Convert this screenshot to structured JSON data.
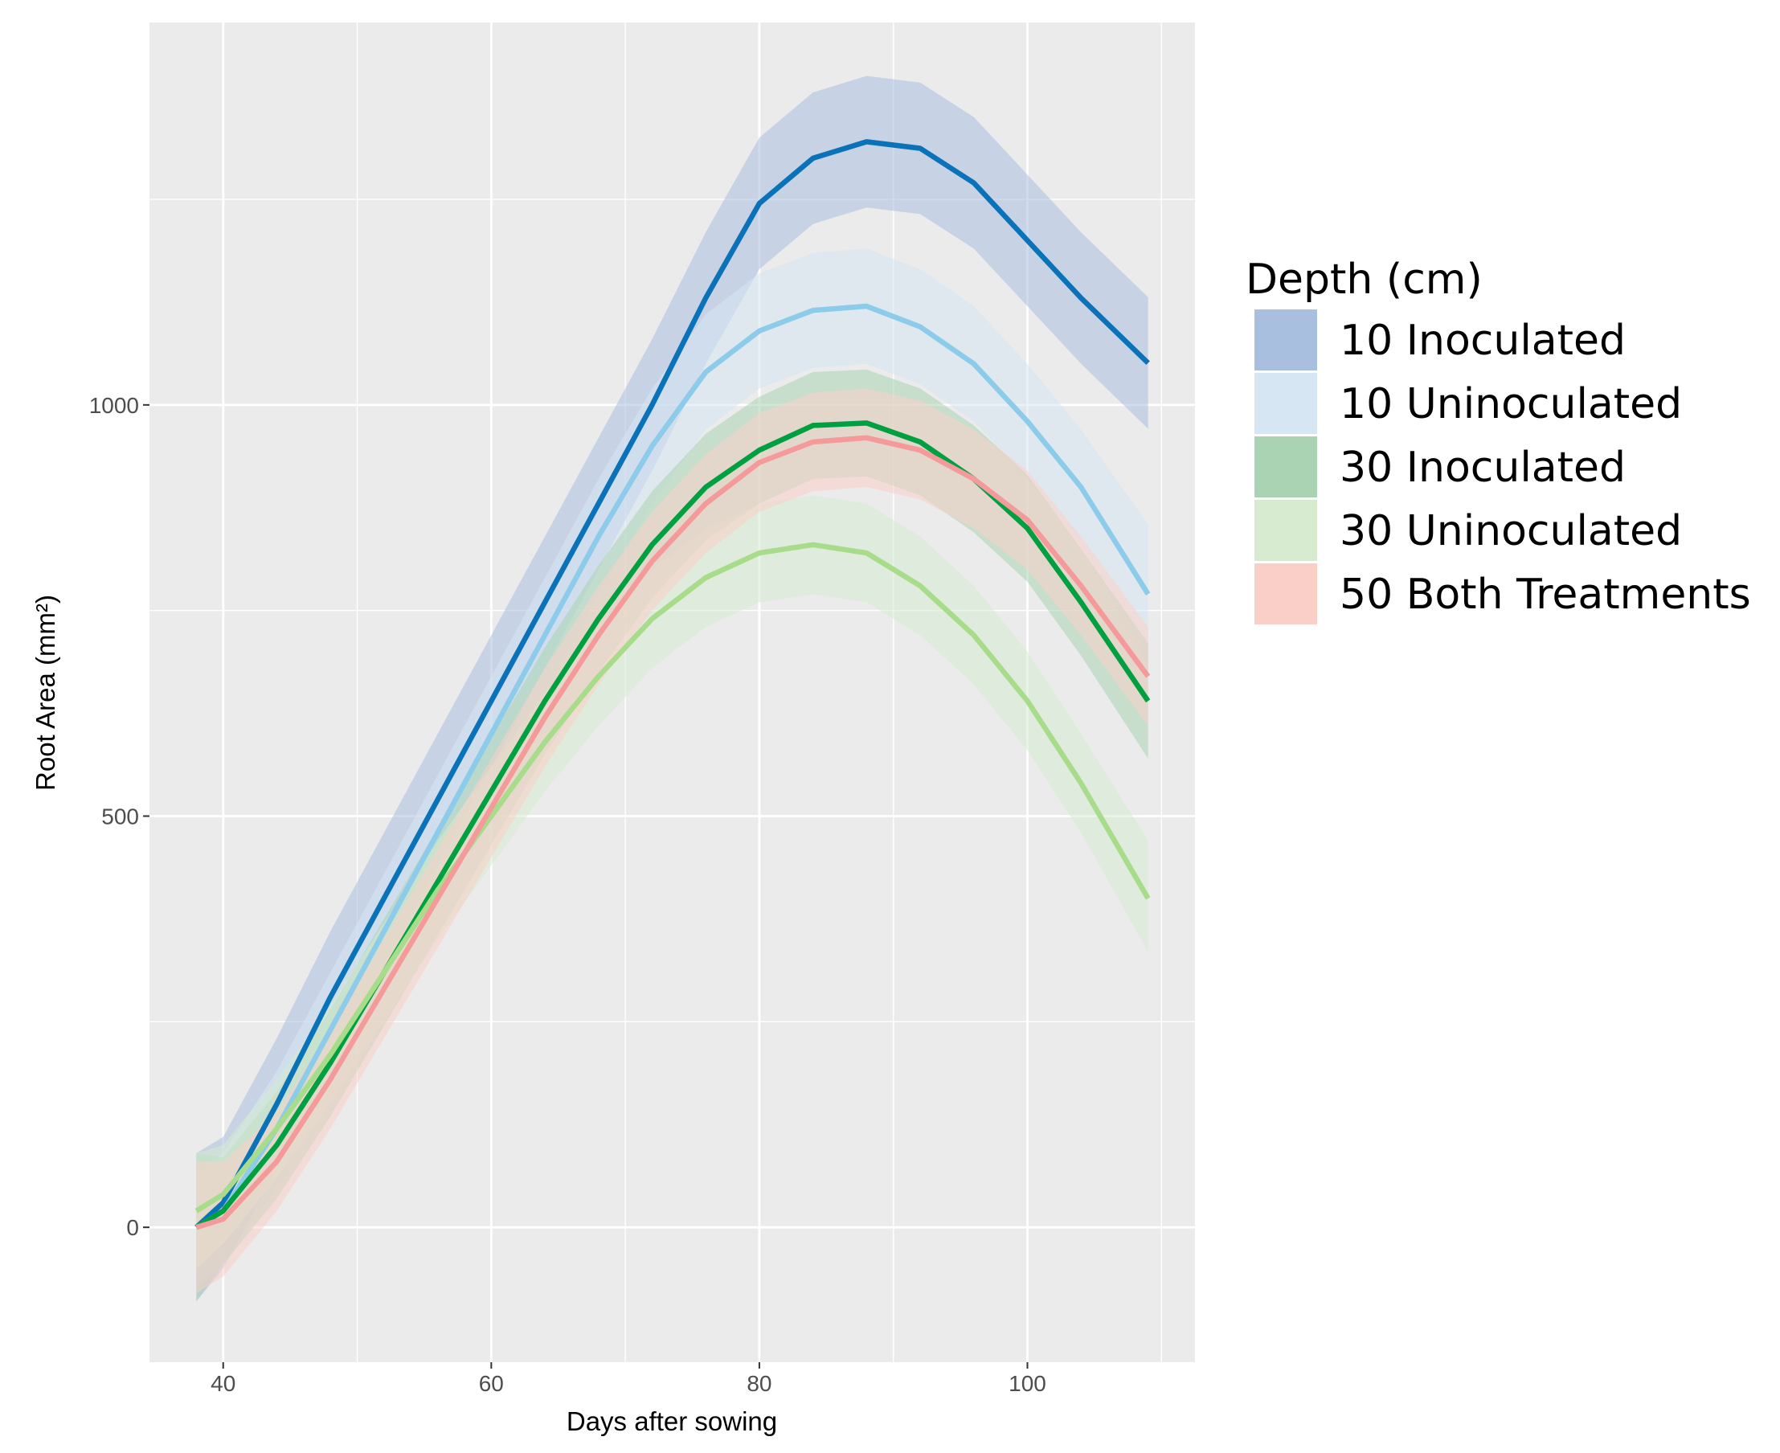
{
  "chart_data": {
    "type": "line",
    "x_label": "Days after sowing",
    "y_label": "Root Area (mm²)",
    "legend_title": "Depth (cm)",
    "legend_position": "right",
    "grid": true,
    "background": "#ebebeb",
    "band_opacity": 0.55,
    "xlim": [
      34.5,
      112.5
    ],
    "xticks": [
      40,
      60,
      80,
      100
    ],
    "xminor_ticks": [
      50,
      70,
      90,
      110
    ],
    "ylim": [
      -164,
      1465
    ],
    "yticks": [
      0,
      500,
      1000
    ],
    "yminor_ticks": [
      250,
      750,
      1250
    ],
    "x": [
      38,
      40,
      44,
      48,
      52,
      56,
      60,
      64,
      68,
      72,
      76,
      80,
      84,
      88,
      92,
      96,
      100,
      104,
      109
    ],
    "series": [
      {
        "name": "10 Inoculated",
        "color": "#0a72b8",
        "band_color": "#a9bfe0",
        "values": [
          0,
          30,
          150,
          280,
          400,
          520,
          640,
          760,
          880,
          1000,
          1130,
          1245,
          1300,
          1320,
          1312,
          1270,
          1200,
          1130,
          1051
        ],
        "lower": [
          -90,
          -50,
          70,
          200,
          320,
          440,
          560,
          680,
          800,
          920,
          1050,
          1165,
          1220,
          1240,
          1232,
          1190,
          1120,
          1050,
          971
        ],
        "upper": [
          90,
          110,
          230,
          360,
          480,
          600,
          720,
          840,
          960,
          1080,
          1210,
          1325,
          1380,
          1400,
          1392,
          1350,
          1280,
          1210,
          1131
        ]
      },
      {
        "name": "10 Uninoculated",
        "color": "#8ccbea",
        "band_color": "#d6e6f2",
        "values": [
          0,
          20,
          120,
          240,
          360,
          480,
          600,
          720,
          840,
          950,
          1040,
          1090,
          1115,
          1120,
          1095,
          1050,
          980,
          900,
          770
        ],
        "lower": [
          -70,
          -50,
          50,
          170,
          290,
          410,
          530,
          650,
          770,
          880,
          970,
          1020,
          1045,
          1050,
          1025,
          980,
          910,
          830,
          685
        ],
        "upper": [
          70,
          90,
          190,
          310,
          430,
          550,
          670,
          790,
          910,
          1020,
          1110,
          1160,
          1185,
          1190,
          1165,
          1120,
          1050,
          970,
          855
        ]
      },
      {
        "name": "30 Inoculated",
        "color": "#00a040",
        "band_color": "#a9d3b3",
        "values": [
          0,
          20,
          100,
          200,
          310,
          420,
          530,
          640,
          740,
          830,
          900,
          945,
          975,
          978,
          955,
          910,
          850,
          760,
          640
        ],
        "lower": [
          -90,
          -45,
          35,
          135,
          245,
          355,
          465,
          575,
          675,
          765,
          835,
          880,
          910,
          913,
          890,
          845,
          785,
          695,
          570
        ],
        "upper": [
          90,
          85,
          165,
          265,
          375,
          485,
          595,
          705,
          805,
          895,
          965,
          1010,
          1040,
          1043,
          1020,
          975,
          915,
          825,
          710
        ]
      },
      {
        "name": "30 Uninoculated",
        "color": "#a6dc8a",
        "band_color": "#d6ebcf",
        "values": [
          20,
          40,
          120,
          210,
          310,
          410,
          500,
          590,
          670,
          740,
          790,
          820,
          830,
          820,
          780,
          720,
          640,
          540,
          400
        ],
        "lower": [
          -50,
          -20,
          60,
          150,
          250,
          350,
          440,
          530,
          610,
          680,
          730,
          760,
          770,
          760,
          720,
          660,
          580,
          480,
          335
        ],
        "upper": [
          90,
          100,
          180,
          270,
          370,
          470,
          560,
          650,
          730,
          800,
          850,
          880,
          890,
          880,
          840,
          780,
          700,
          600,
          470
        ]
      },
      {
        "name": "50 Both Treatments",
        "color": "#f59a9a",
        "band_color": "#f9cfc8",
        "values": [
          0,
          10,
          80,
          180,
          290,
          400,
          510,
          620,
          720,
          810,
          880,
          930,
          955,
          960,
          945,
          910,
          860,
          780,
          670
        ],
        "lower": [
          -80,
          -60,
          20,
          120,
          230,
          340,
          450,
          560,
          660,
          750,
          820,
          870,
          895,
          900,
          885,
          850,
          800,
          720,
          610
        ],
        "upper": [
          80,
          80,
          140,
          240,
          350,
          460,
          570,
          680,
          780,
          870,
          940,
          990,
          1015,
          1020,
          1005,
          970,
          920,
          840,
          730
        ]
      }
    ]
  }
}
